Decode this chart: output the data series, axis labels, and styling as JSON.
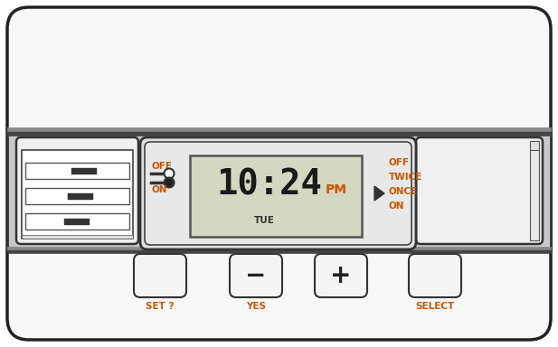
{
  "bg_color": "#ffffff",
  "panel_fc": "#f8f8f8",
  "panel_ec": "#222222",
  "strip_fc": "#cccccc",
  "strip_ec": "#333333",
  "lcd_fc": "#d8dbc8",
  "lcd_ec": "#555555",
  "time_text": "10:24",
  "ampm_text": "PM",
  "day_text": "TUE",
  "off_label": "OFF",
  "on_label": "ON",
  "mode_labels": [
    "OFF",
    "TWICE",
    "ONCE",
    "ON"
  ],
  "btn_labels": [
    "SET ?",
    "YES",
    "",
    "SELECT"
  ],
  "btn_symbols": [
    "",
    "−",
    "+",
    ""
  ],
  "label_color": "#cc5500",
  "text_color": "#222222",
  "time_color": "#1a1a1a"
}
